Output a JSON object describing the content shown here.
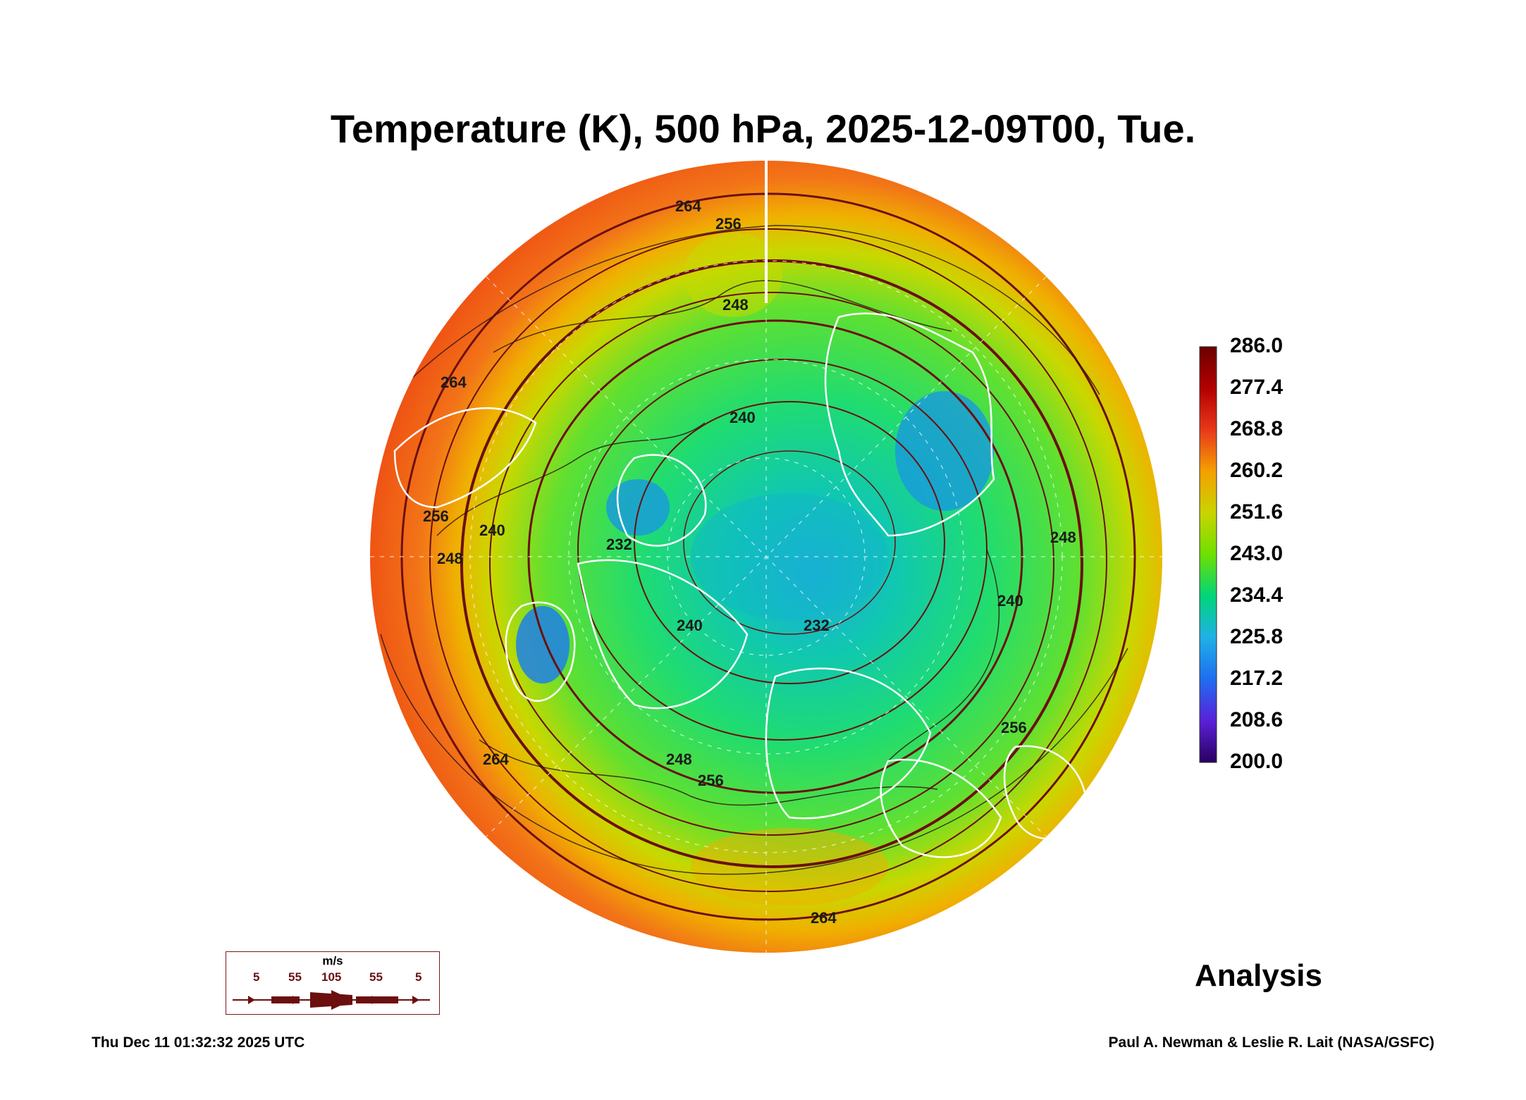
{
  "title": "Temperature (K), 500 hPa, 2025-12-09T00, Tue.",
  "colorbar": {
    "labels": [
      "286.0",
      "277.4",
      "268.8",
      "260.2",
      "251.6",
      "243.0",
      "234.4",
      "225.8",
      "217.2",
      "208.6",
      "200.0"
    ],
    "colors": [
      "#6b0000",
      "#b30000",
      "#e8381a",
      "#f5a000",
      "#c9d400",
      "#6ee000",
      "#00d57a",
      "#1fb0e8",
      "#1e6ef0",
      "#5a20d8",
      "#2a0060"
    ]
  },
  "contour_labels": [
    "264",
    "256",
    "248",
    "240",
    "232",
    "240",
    "240",
    "248",
    "256",
    "264",
    "264",
    "256",
    "248",
    "240",
    "232",
    "248",
    "256",
    "264"
  ],
  "wind_legend": {
    "unit": "m/s",
    "speeds": [
      "5",
      "55",
      "105",
      "55",
      "5"
    ]
  },
  "status": "Analysis",
  "timestamp": "Thu Dec 11 01:32:32 2025 UTC",
  "credit": "Paul A. Newman & Leslie R. Lait (NASA/GSFC)"
}
